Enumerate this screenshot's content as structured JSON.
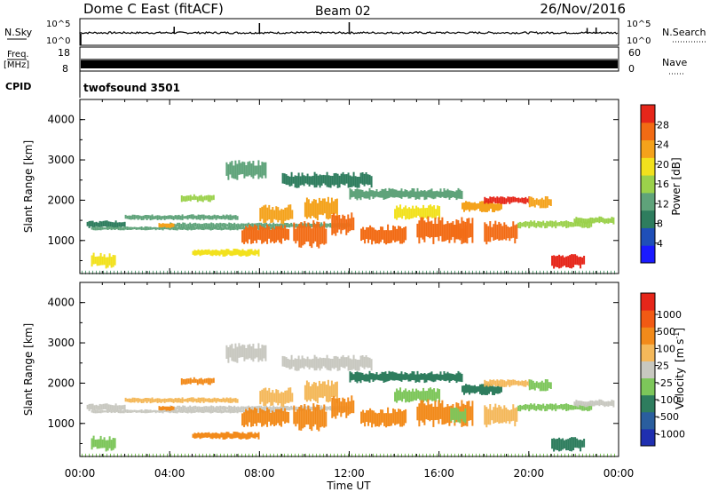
{
  "header": {
    "station": "Dome C East (fitACF)",
    "beam": "Beam 02",
    "date": "26/Nov/2016"
  },
  "aux_panels": {
    "nsky_label": "N.Sky",
    "nsky_ticks": [
      "10^5",
      "10^0"
    ],
    "nsearch_label": "N.Search",
    "nsearch_ticks": [
      "10^5",
      "10^0"
    ],
    "freq_label_line1": "Freq.",
    "freq_label_line2": "[MHz]",
    "freq_ticks": [
      "18",
      "8"
    ],
    "nave_label": "Nave",
    "nave_ticks": [
      "60",
      "0"
    ],
    "cpid_label": "CPID",
    "cpid_value": "twofsound 3501"
  },
  "chart_data": [
    {
      "type": "heatmap",
      "name": "power",
      "ylabel": "Slant Range [km]",
      "xlabel": "",
      "yticks": [
        "1000",
        "2000",
        "3000",
        "4000"
      ],
      "ylim": [
        180,
        4500
      ],
      "xlim_hours": [
        0,
        24
      ],
      "colorbar": {
        "label": "Power [dB]",
        "ticks": [
          "4",
          "8",
          "12",
          "16",
          "20",
          "24",
          "28"
        ],
        "range": [
          0,
          32
        ],
        "colors": [
          "#1a1aff",
          "#1f4fb8",
          "#2e7d5e",
          "#5fa37a",
          "#9bd14b",
          "#f2e11d",
          "#f4a21b",
          "#f26b14",
          "#e6261a"
        ]
      }
    },
    {
      "type": "heatmap",
      "name": "velocity",
      "ylabel": "Slant Range [km]",
      "xlabel": "Time UT",
      "yticks": [
        "1000",
        "2000",
        "3000",
        "4000"
      ],
      "ylim": [
        180,
        4500
      ],
      "xticks": [
        "00:00",
        "04:00",
        "08:00",
        "12:00",
        "16:00",
        "20:00",
        "00:00"
      ],
      "colorbar": {
        "label": "Velocity",
        "label_unit": "[m s",
        "label_exp": "-1",
        "label_close": "]",
        "ticks": [
          "1000",
          "500",
          "100",
          "25",
          "-25",
          "-100",
          "-500",
          "-1000"
        ],
        "colors": [
          "#1f2fb0",
          "#2a5e9e",
          "#2e7d5e",
          "#7dc65a",
          "#c8c8c0",
          "#f4b85a",
          "#f28a1a",
          "#f25a14",
          "#e6261a"
        ]
      }
    }
  ]
}
